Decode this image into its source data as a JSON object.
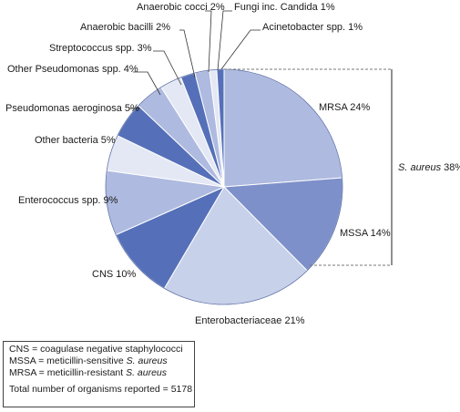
{
  "chart_data": {
    "type": "pie",
    "slices": [
      {
        "label": "MRSA",
        "value": 24,
        "text": "MRSA 24%",
        "color": "#aebadf"
      },
      {
        "label": "MSSA",
        "value": 14,
        "text": "MSSA 14%",
        "color": "#7e90c9"
      },
      {
        "label": "Enterobacteriaceae",
        "value": 21,
        "text": "Enterobacteriaceae 21%",
        "color": "#c8d1ea"
      },
      {
        "label": "CNS",
        "value": 10,
        "text": "CNS 10%",
        "color": "#5570b8"
      },
      {
        "label": "Enterococcus spp.",
        "value": 9,
        "text": "Enterococcus spp. 9%",
        "color": "#aebadf"
      },
      {
        "label": "Other bacteria",
        "value": 5,
        "text": "Other bacteria 5%",
        "color": "#e4e8f4"
      },
      {
        "label": "Pseudomonas aeroginosa",
        "value": 5,
        "text": "Pseudomonas aeroginosa 5%",
        "color": "#5570b8"
      },
      {
        "label": "Other Pseudomonas spp.",
        "value": 4,
        "text": "Other Pseudomonas spp. 4%",
        "color": "#aebadf"
      },
      {
        "label": "Streptococcus spp.",
        "value": 3,
        "text": "Streptococcus spp. 3%",
        "color": "#e4e8f4"
      },
      {
        "label": "Anaerobic bacilli",
        "value": 2,
        "text": "Anaerobic bacilli 2%",
        "color": "#5570b8"
      },
      {
        "label": "Anaerobic cocci",
        "value": 2,
        "text": "Anaerobic cocci 2%",
        "color": "#aebadf"
      },
      {
        "label": "Fungi inc. Candida",
        "value": 1,
        "text": "Fungi inc. Candida 1%",
        "color": "#e4e8f4"
      },
      {
        "label": "Acinetobacter spp.",
        "value": 1,
        "text": "Acinetobacter spp. 1%",
        "color": "#5570b8"
      }
    ],
    "group": {
      "label_italic": "S. aureus",
      "label_suffix": " 38%"
    },
    "start": "12 o'clock",
    "direction": "clockwise"
  },
  "legend": {
    "cns_prefix": "CNS = coagulase negative staphylococci",
    "mssa_prefix": "MSSA = meticillin-sensitive ",
    "mssa_italic": "S. aureus",
    "mrsa_prefix": "MRSA = meticillin-resistant ",
    "mrsa_italic": "S. aureus",
    "total": "Total number of organisms reported = 5178"
  }
}
